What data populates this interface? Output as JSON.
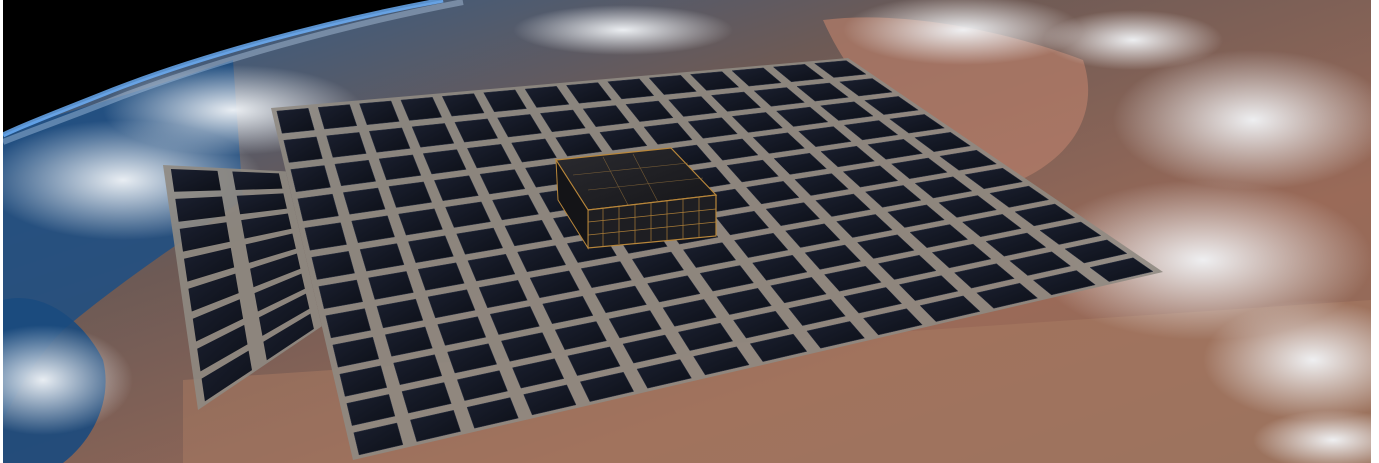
{
  "image": {
    "alt": "",
    "subject": "satellite-with-phased-array-over-earth",
    "colors": {
      "space": "#000000",
      "ocean": "#1c4f86",
      "land": "#8a5a4c",
      "desert": "#b98a72",
      "cloud": "#e9eef3",
      "panel": "#141822",
      "panel_frame": "#8f8a82",
      "satellite_gold": "#b8863a",
      "satellite_body": "#222226"
    },
    "array": {
      "rows": 12,
      "cols": 14
    }
  }
}
